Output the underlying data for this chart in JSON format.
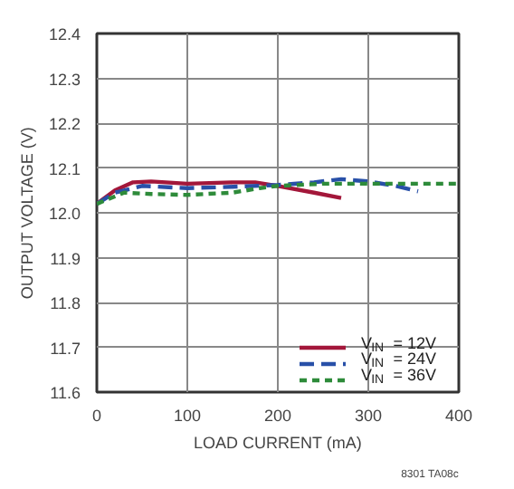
{
  "chart_data": {
    "type": "line",
    "xlabel": "LOAD CURRENT (mA)",
    "ylabel": "OUTPUT VOLTAGE (V)",
    "xlim": [
      0,
      400
    ],
    "ylim": [
      11.6,
      12.4
    ],
    "xticks": [
      0,
      100,
      200,
      300,
      400
    ],
    "yticks": [
      11.6,
      11.7,
      11.8,
      11.9,
      {
        "value": 12.0,
        "label": "12.0"
      },
      12.1,
      12.2,
      12.3,
      12.4
    ],
    "grid": true,
    "legend": "bottom right",
    "annotations": [
      "8301 TA08c"
    ],
    "series": [
      {
        "name": "V$_{IN}$ = 12V",
        "color": "#a3173a",
        "line_style": "solid",
        "x": [
          0,
          20,
          40,
          60,
          100,
          150,
          175,
          200,
          240,
          270
        ],
        "values": [
          12.02,
          12.05,
          12.068,
          12.07,
          12.065,
          12.068,
          12.068,
          12.06,
          12.045,
          12.033
        ]
      },
      {
        "name": "V$_{IN}$ = 24V",
        "color": "#2850a8",
        "line_style": "dashed",
        "x": [
          0,
          20,
          50,
          100,
          150,
          200,
          240,
          270,
          300,
          330,
          355
        ],
        "values": [
          12.02,
          12.045,
          12.06,
          12.055,
          12.058,
          12.062,
          12.068,
          12.075,
          12.07,
          12.06,
          12.048
        ]
      },
      {
        "name": "V$_{IN}$ = 36V",
        "color": "#2e8b3a",
        "line_style": "dotted",
        "x": [
          0,
          30,
          60,
          100,
          150,
          180,
          200,
          250,
          300,
          400
        ],
        "values": [
          12.02,
          12.045,
          12.042,
          12.04,
          12.045,
          12.055,
          12.06,
          12.065,
          12.065,
          12.065
        ]
      }
    ]
  }
}
